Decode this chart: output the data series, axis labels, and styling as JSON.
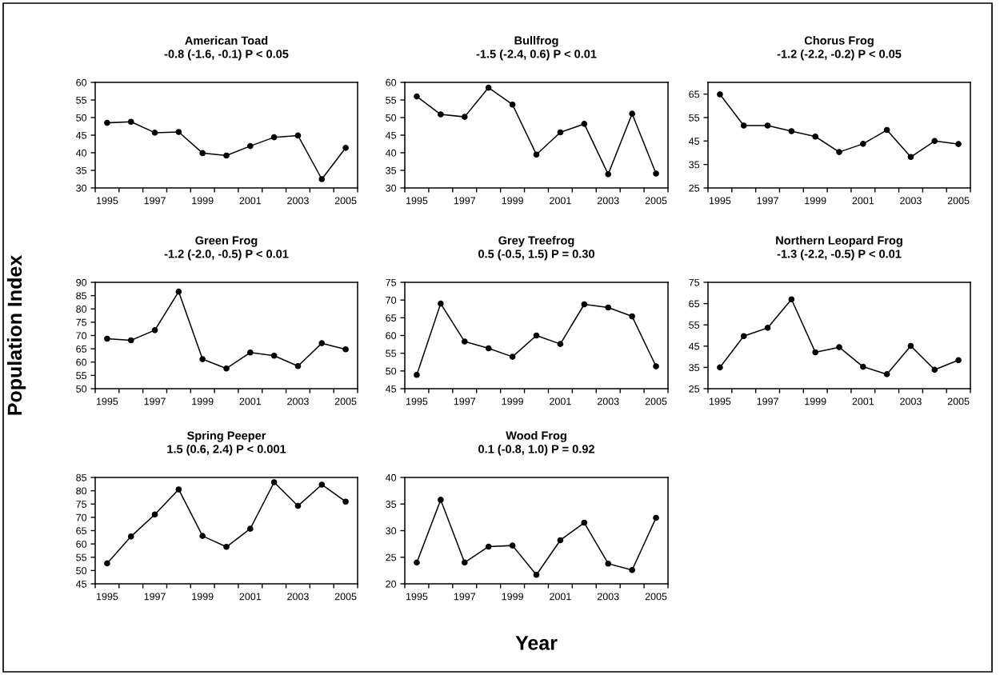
{
  "chart_data": [
    {
      "type": "line",
      "title": "American Toad\n-0.8 (-1.6, -0.1) P < 0.05",
      "categories": [
        "1995",
        null,
        "1997",
        null,
        "1999",
        null,
        "2001",
        null,
        "2003",
        null,
        "2005"
      ],
      "values": [
        48.5,
        48.8,
        45.7,
        45.9,
        39.9,
        39.2,
        41.9,
        44.4,
        44.9,
        32.5,
        41.4
      ],
      "color": "#000000",
      "marker": "circle",
      "ylim": [
        30,
        60
      ],
      "yticks": [
        30,
        35,
        40,
        45,
        50,
        55,
        60
      ]
    },
    {
      "type": "line",
      "title": "Bullfrog\n-1.5 (-2.4, 0.6) P < 0.01",
      "categories": [
        "1995",
        null,
        "1997",
        null,
        "1999",
        null,
        "2001",
        null,
        "2003",
        null,
        "2005"
      ],
      "values": [
        56.0,
        50.9,
        50.2,
        58.5,
        53.7,
        39.5,
        45.8,
        48.2,
        33.9,
        51.1,
        34.1
      ],
      "color": "#000000",
      "marker": "circle",
      "ylim": [
        30,
        60
      ],
      "yticks": [
        30,
        35,
        40,
        45,
        50,
        55,
        60
      ]
    },
    {
      "type": "line",
      "title": "Chorus Frog\n-1.2 (-2.2, -0.2) P < 0.05",
      "categories": [
        "1995",
        null,
        "1997",
        null,
        "1999",
        null,
        "2001",
        null,
        "2003",
        null,
        "2005"
      ],
      "values": [
        64.9,
        51.6,
        51.6,
        49.2,
        46.9,
        40.3,
        43.8,
        49.7,
        38.2,
        45.0,
        43.7
      ],
      "color": "#000000",
      "marker": "circle",
      "ylim": [
        25,
        70
      ],
      "yticks": [
        25,
        35,
        45,
        55,
        65
      ]
    },
    {
      "type": "line",
      "title": "Green Frog\n-1.2 (-2.0, -0.5) P < 0.01",
      "ylabel": "Population Index",
      "categories": [
        "1995",
        null,
        "1997",
        null,
        "1999",
        null,
        "2001",
        null,
        "2003",
        null,
        "2005"
      ],
      "values": [
        68.8,
        68.2,
        72.0,
        86.5,
        61.1,
        57.6,
        63.6,
        62.4,
        58.5,
        67.1,
        64.8
      ],
      "color": "#000000",
      "marker": "circle",
      "ylim": [
        50,
        90
      ],
      "yticks": [
        50,
        55,
        60,
        65,
        70,
        75,
        80,
        85,
        90
      ]
    },
    {
      "type": "line",
      "title": "Grey Treefrog\n0.5 (-0.5, 1.5) P = 0.30",
      "categories": [
        "1995",
        null,
        "1997",
        null,
        "1999",
        null,
        "2001",
        null,
        "2003",
        null,
        "2005"
      ],
      "values": [
        48.9,
        69.0,
        58.3,
        56.4,
        54.0,
        60.0,
        57.6,
        68.8,
        67.9,
        65.4,
        51.3
      ],
      "color": "#000000",
      "marker": "circle",
      "ylim": [
        45,
        75
      ],
      "yticks": [
        45,
        50,
        55,
        60,
        65,
        70,
        75
      ]
    },
    {
      "type": "line",
      "title": "Northern Leopard Frog\n-1.3 (-2.2, -0.5) P < 0.01",
      "categories": [
        "1995",
        null,
        "1997",
        null,
        "1999",
        null,
        "2001",
        null,
        "2003",
        null,
        "2005"
      ],
      "values": [
        35.0,
        49.7,
        53.6,
        67.0,
        42.1,
        44.5,
        35.3,
        31.8,
        45.1,
        33.9,
        38.4
      ],
      "color": "#000000",
      "marker": "circle",
      "ylim": [
        25,
        75
      ],
      "yticks": [
        25,
        35,
        45,
        55,
        65,
        75
      ]
    },
    {
      "type": "line",
      "title": "Spring Peeper\n1.5 (0.6, 2.4) P < 0.001",
      "categories": [
        "1995",
        null,
        "1997",
        null,
        "1999",
        null,
        "2001",
        null,
        "2003",
        null,
        "2005"
      ],
      "values": [
        52.7,
        62.8,
        71.1,
        80.5,
        63.0,
        58.9,
        65.7,
        83.2,
        74.3,
        82.3,
        75.9
      ],
      "color": "#000000",
      "marker": "circle",
      "ylim": [
        45,
        85
      ],
      "yticks": [
        45,
        50,
        55,
        60,
        65,
        70,
        75,
        80,
        85
      ]
    },
    {
      "type": "line",
      "title": "Wood Frog\n0.1 (-0.8, 1.0) P = 0.92",
      "xlabel": "Year",
      "categories": [
        "1995",
        null,
        "1997",
        null,
        "1999",
        null,
        "2001",
        null,
        "2003",
        null,
        "2005"
      ],
      "values": [
        24.0,
        35.8,
        24.0,
        27.0,
        27.2,
        21.7,
        28.2,
        31.5,
        23.8,
        22.6,
        32.4
      ],
      "color": "#000000",
      "marker": "circle",
      "ylim": [
        20,
        40
      ],
      "yticks": [
        20,
        25,
        30,
        35,
        40
      ]
    }
  ]
}
